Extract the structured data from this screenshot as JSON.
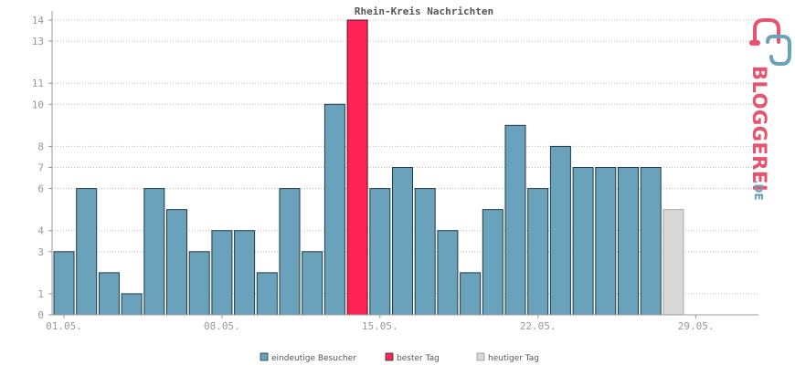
{
  "chart_data": {
    "type": "bar",
    "title": "Rhein-Kreis Nachrichten",
    "ylim": [
      0,
      14
    ],
    "y_ticks": [
      "0",
      "1",
      "3",
      "4",
      "6",
      "7",
      "8",
      "10",
      "11",
      "13",
      "14"
    ],
    "x_tick_labels": [
      "01.05.",
      "08.05.",
      "15.05.",
      "22.05.",
      "29.05."
    ],
    "grid": true,
    "legend_placement": "bottom-center",
    "series": [
      {
        "name": "eindeutige Besucher",
        "color": "#6aa2bb",
        "values": [
          3,
          6,
          2,
          1,
          6,
          5,
          3,
          4,
          4,
          2,
          6,
          3,
          10,
          null,
          6,
          7,
          6,
          4,
          2,
          5,
          9,
          6,
          8,
          7,
          7,
          7,
          7,
          null
        ]
      },
      {
        "name": "bester Tag",
        "color": "#ff2255",
        "values": [
          null,
          null,
          null,
          null,
          null,
          null,
          null,
          null,
          null,
          null,
          null,
          null,
          null,
          14,
          null,
          null,
          null,
          null,
          null,
          null,
          null,
          null,
          null,
          null,
          null,
          null,
          null,
          null
        ]
      },
      {
        "name": "heutiger Tag",
        "color": "#d8d8d8",
        "values": [
          null,
          null,
          null,
          null,
          null,
          null,
          null,
          null,
          null,
          null,
          null,
          null,
          null,
          null,
          null,
          null,
          null,
          null,
          null,
          null,
          null,
          null,
          null,
          null,
          null,
          null,
          null,
          5
        ]
      }
    ]
  },
  "logo": {
    "text": "BLOGGEREI",
    "suffix": ".DE"
  }
}
